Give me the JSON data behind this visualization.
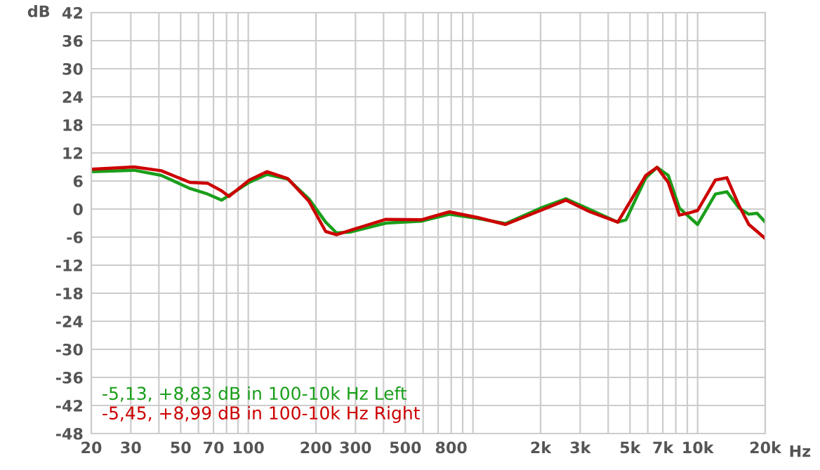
{
  "chart_data": {
    "type": "line",
    "xlabel": "Hz",
    "ylabel": "dB",
    "log": "x",
    "grid": true,
    "legend": "bottom left",
    "marker": "none",
    "line_style": "solid",
    "xlim": [
      20,
      20000
    ],
    "ylim": [
      -48,
      42
    ],
    "xticks": [
      20,
      30,
      {
        "value": 40,
        "label": null
      },
      50,
      {
        "value": 60,
        "label": null
      },
      70,
      {
        "value": 80,
        "label": null
      },
      {
        "value": 90,
        "label": null
      },
      100,
      200,
      300,
      {
        "value": 400,
        "label": null
      },
      500,
      {
        "value": 600,
        "label": null
      },
      {
        "value": 700,
        "label": null
      },
      800,
      {
        "value": 900,
        "label": null
      },
      {
        "value": 1000,
        "label": null
      },
      {
        "value": 2000,
        "label": "2k"
      },
      {
        "value": 3000,
        "label": "3k"
      },
      {
        "value": 4000,
        "label": null
      },
      {
        "value": 5000,
        "label": "5k"
      },
      {
        "value": 6000,
        "label": null
      },
      {
        "value": 7000,
        "label": "7k"
      },
      {
        "value": 8000,
        "label": null
      },
      {
        "value": 9000,
        "label": null
      },
      {
        "value": 10000,
        "label": "10k"
      },
      {
        "value": 20000,
        "label": "20k"
      }
    ],
    "yticks": [
      42,
      36,
      30,
      24,
      18,
      12,
      6,
      0,
      -6,
      -12,
      -18,
      -24,
      -30,
      -36,
      -42,
      -48
    ],
    "series": [
      {
        "name": "-5,13, +8,83 dB in 100-10k Hz Left",
        "color": "#1a9e1a",
        "x": [
          20,
          31,
          41,
          55,
          66,
          76,
          82,
          101,
          121,
          150,
          186,
          221,
          247,
          286,
          410,
          589,
          785,
          1046,
          1396,
          2000,
          2592,
          3320,
          4414,
          4800,
          5883,
          6600,
          7400,
          8300,
          10000,
          12000,
          13500,
          15300,
          16900,
          18400,
          20000
        ],
        "values": [
          8.0,
          8.3,
          7.2,
          4.4,
          3.2,
          1.9,
          2.9,
          5.7,
          7.4,
          6.4,
          2.2,
          -2.8,
          -5.1,
          -4.9,
          -3.0,
          -2.6,
          -1.1,
          -2.0,
          -3.1,
          0.2,
          2.2,
          -0.1,
          -2.8,
          -2.3,
          6.7,
          8.9,
          7.2,
          0.2,
          -3.3,
          3.2,
          3.7,
          0.2,
          -1.1,
          -0.9,
          -2.8
        ]
      },
      {
        "name": "-5,45, +8,99 dB in 100-10k Hz Right",
        "color": "#cc0000",
        "x": [
          20,
          31,
          41,
          55,
          66,
          76,
          82,
          101,
          121,
          150,
          186,
          221,
          247,
          286,
          410,
          589,
          785,
          1046,
          1396,
          2000,
          2592,
          3320,
          4414,
          5883,
          6600,
          7400,
          8300,
          9200,
          10000,
          12000,
          13500,
          15300,
          16900,
          18400,
          20000
        ],
        "values": [
          8.5,
          9.0,
          8.2,
          5.7,
          5.5,
          3.9,
          2.7,
          6.2,
          8.0,
          6.5,
          1.7,
          -4.8,
          -5.5,
          -4.5,
          -2.2,
          -2.3,
          -0.6,
          -1.8,
          -3.3,
          -0.3,
          1.9,
          -0.6,
          -2.8,
          7.2,
          8.9,
          5.7,
          -1.3,
          -0.8,
          -0.3,
          6.2,
          6.7,
          0.7,
          -3.3,
          -4.8,
          -6.3
        ]
      }
    ]
  }
}
